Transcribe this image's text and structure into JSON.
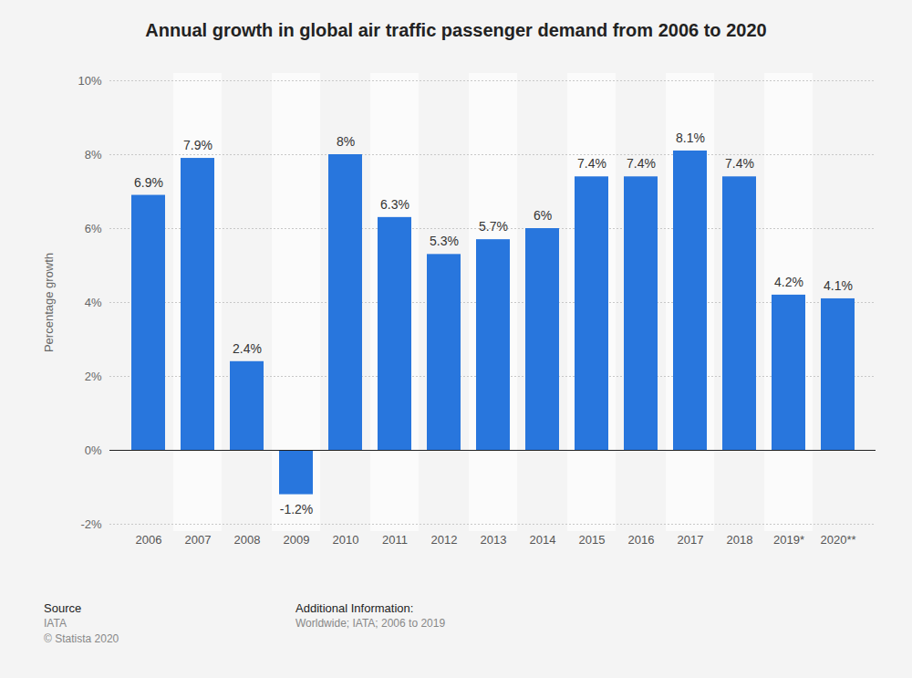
{
  "chart_data": {
    "type": "bar",
    "title": "Annual growth in global air traffic passenger demand from 2006 to 2020",
    "y_label": "Percentage growth",
    "categories": [
      "2006",
      "2007",
      "2008",
      "2009",
      "2010",
      "2011",
      "2012",
      "2013",
      "2014",
      "2015",
      "2016",
      "2017",
      "2018",
      "2019*",
      "2020**"
    ],
    "values": [
      6.9,
      7.9,
      2.4,
      -1.2,
      8,
      6.3,
      5.3,
      5.7,
      6,
      7.4,
      7.4,
      8.1,
      7.4,
      4.2,
      4.1
    ],
    "value_labels": [
      "6.9%",
      "7.9%",
      "2.4%",
      "-1.2%",
      "8%",
      "6.3%",
      "5.3%",
      "5.7%",
      "6%",
      "7.4%",
      "7.4%",
      "8.1%",
      "7.4%",
      "4.2%",
      "4.1%"
    ],
    "color": "#2876dd",
    "ylim": [
      -2,
      10
    ],
    "yticks": [
      {
        "value": -2,
        "label": "-2%"
      },
      {
        "value": 0,
        "label": "0%"
      },
      {
        "value": 2,
        "label": "2%"
      },
      {
        "value": 4,
        "label": "4%"
      },
      {
        "value": 6,
        "label": "6%"
      },
      {
        "value": 8,
        "label": "8%"
      },
      {
        "value": 10,
        "label": "10%"
      }
    ],
    "grid": true,
    "data_labels": true
  },
  "footer": {
    "source_label": "Source",
    "source": [
      "IATA",
      "© Statista 2020"
    ],
    "additional_info_label": "Additional Information:",
    "additional_info": "Worldwide; IATA; 2006 to 2019"
  }
}
